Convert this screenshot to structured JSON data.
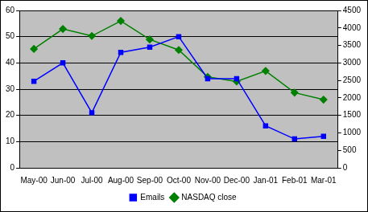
{
  "chart_data": {
    "type": "line",
    "categories": [
      "May-00",
      "Jun-00",
      "Jul-00",
      "Aug-00",
      "Sep-00",
      "Oct-00",
      "Nov-00",
      "Dec-00",
      "Jan-01",
      "Feb-01",
      "Mar-01"
    ],
    "series": [
      {
        "name": "Emails",
        "color": "#0000ff",
        "marker": "square",
        "values": [
          33,
          40,
          21,
          44,
          46,
          50,
          34,
          34,
          16,
          11,
          12
        ]
      },
      {
        "name": "NASDAQ close",
        "color": "#008000",
        "marker": "diamond",
        "axis": "y2",
        "values": [
          3400,
          3970,
          3770,
          4200,
          3670,
          3370,
          2600,
          2470,
          2770,
          2150,
          1950
        ]
      }
    ],
    "ylim": [
      0,
      60
    ],
    "yticks": [
      0,
      10,
      20,
      30,
      40,
      50,
      60
    ],
    "y2lim": [
      0,
      4500
    ],
    "y2ticks": [
      0,
      500,
      1000,
      1500,
      2000,
      2500,
      3000,
      3500,
      4000,
      4500
    ],
    "grid": true,
    "legend": "bottom"
  }
}
